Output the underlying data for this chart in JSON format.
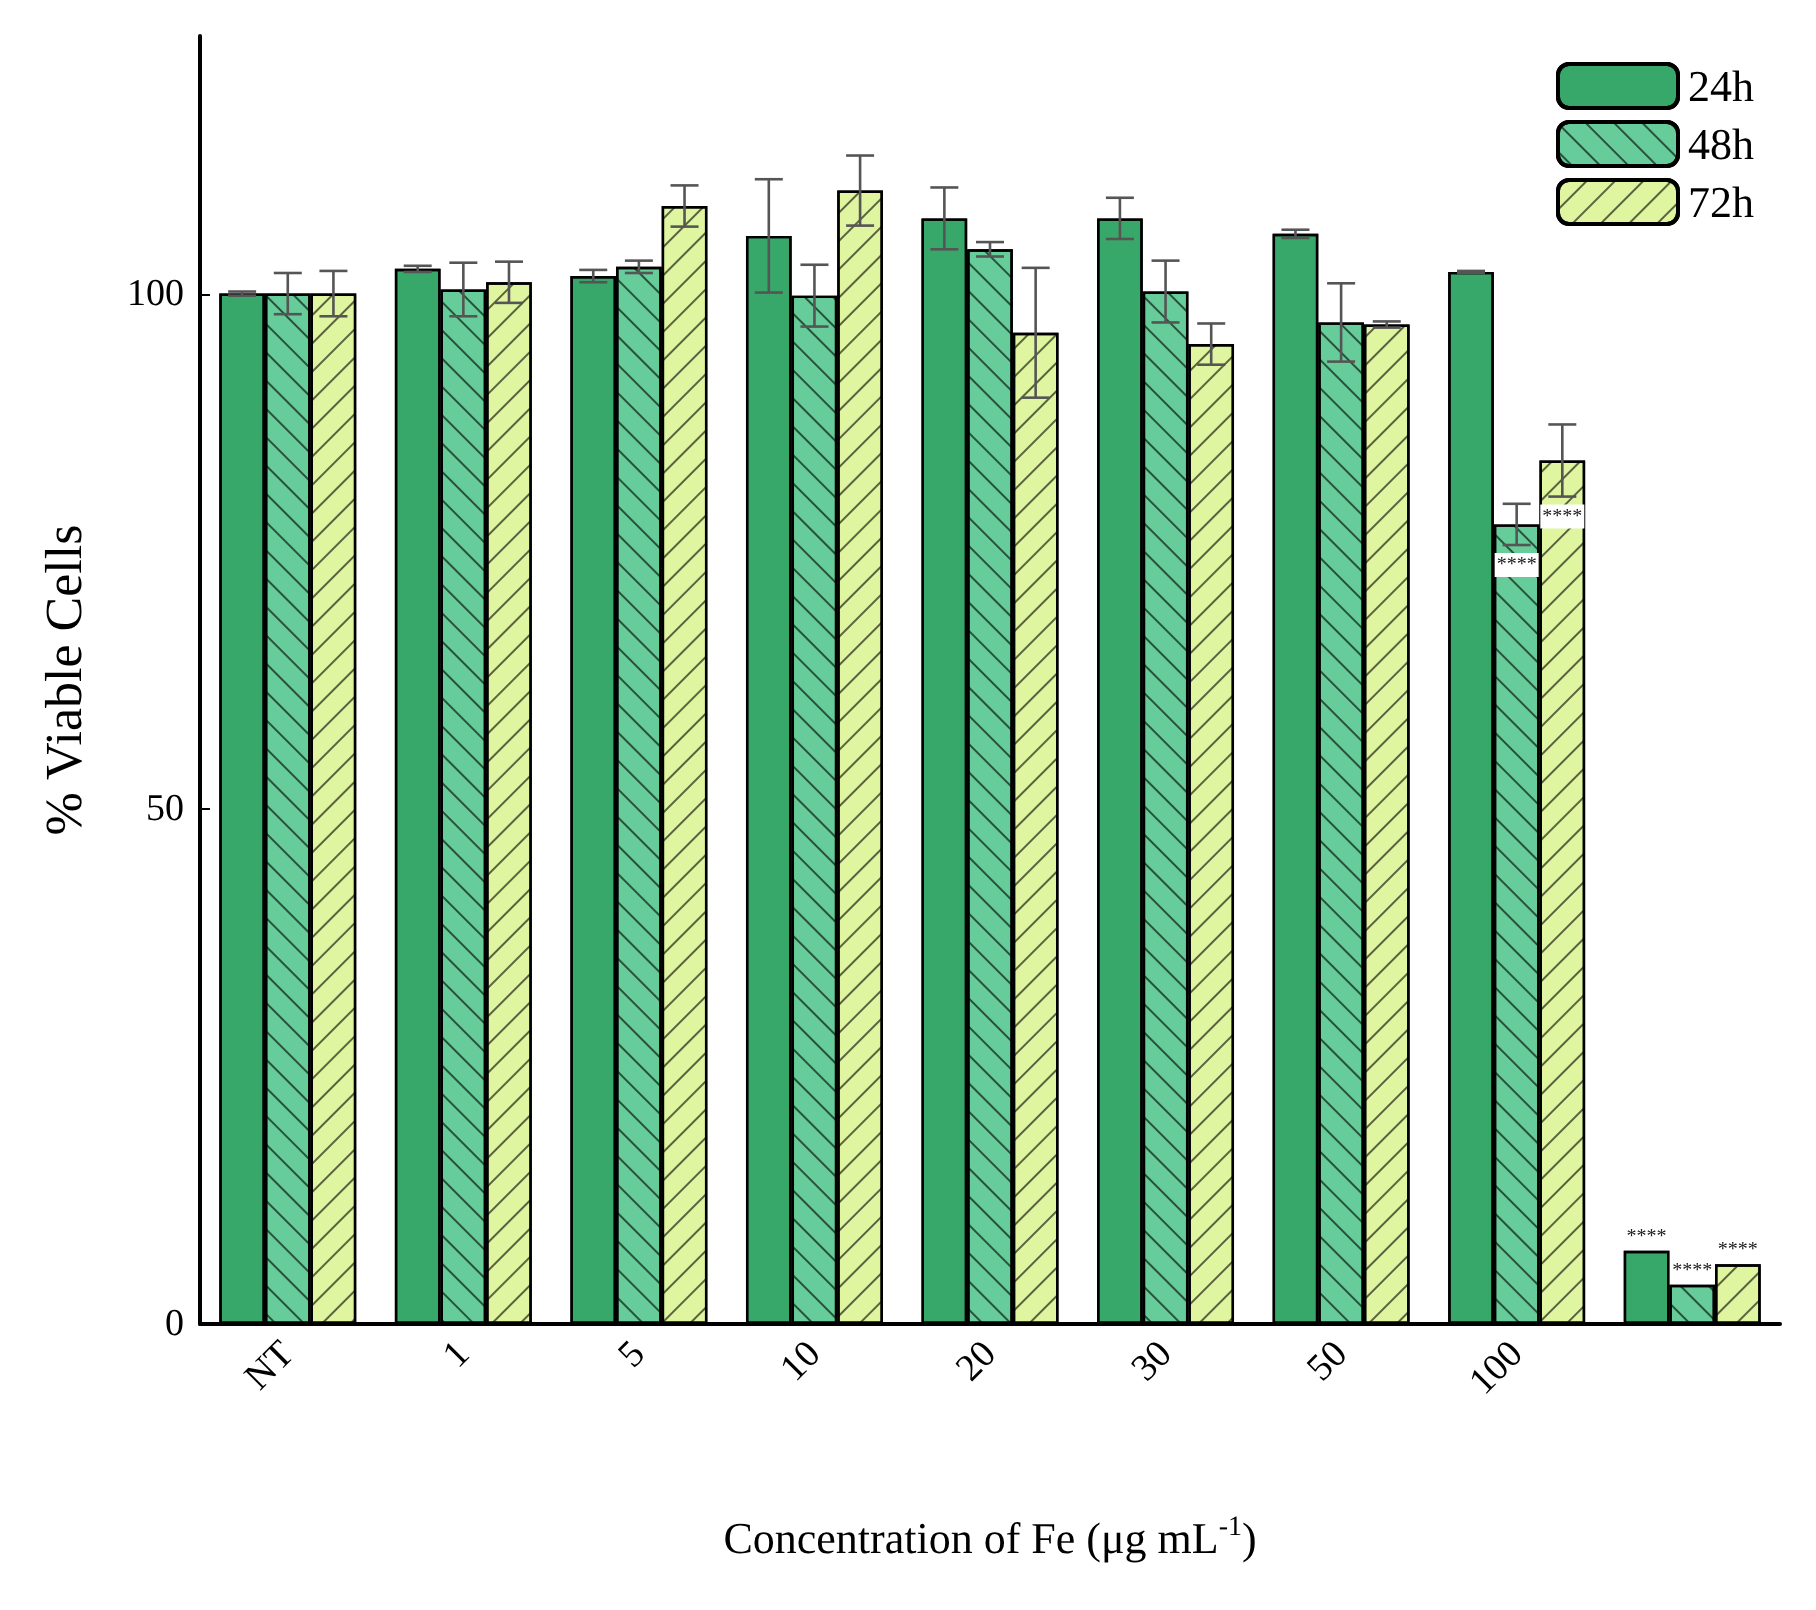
{
  "chart_data": {
    "type": "bar",
    "xlabel": "Concentration of Fe (μg mL$^{-1}$)",
    "ylabel": "% Viable Cells",
    "categories": [
      "NT",
      "1",
      "5",
      "10",
      "20",
      "30",
      "50",
      "100",
      null
    ],
    "series": [
      {
        "name": "24h",
        "color": "#38a86a",
        "values": [
          100,
          102.4,
          101.7,
          105.6,
          107.3,
          107.3,
          105.8,
          102.1,
          7.1
        ],
        "errors": [
          0.2,
          0.3,
          0.6,
          5.5,
          3,
          2,
          0.4,
          0.1,
          null
        ],
        "value_labels": [
          null,
          null,
          null,
          null,
          null,
          null,
          null,
          null,
          "****"
        ]
      },
      {
        "name": "48h",
        "color": "#66cc99",
        "values": [
          100,
          100.4,
          102.6,
          99.8,
          104.3,
          100.2,
          97.2,
          77.6,
          3.8
        ],
        "errors": [
          2,
          2.6,
          0.6,
          3,
          0.7,
          3,
          3.8,
          2,
          null
        ],
        "value_labels": [
          null,
          null,
          null,
          null,
          null,
          null,
          null,
          "****",
          "****"
        ]
      },
      {
        "name": "72h",
        "color": "#e0f5a0",
        "values": [
          100,
          101.1,
          108.5,
          110,
          96.2,
          95.1,
          97,
          83.8,
          5.8
        ],
        "errors": [
          2.2,
          2,
          2,
          3.4,
          6.3,
          2,
          0.3,
          3.5,
          null
        ],
        "value_labels": [
          null,
          null,
          null,
          null,
          null,
          null,
          null,
          "****",
          "****"
        ]
      }
    ],
    "ylim": [
      0,
      125
    ],
    "yticks": [
      0,
      50,
      100
    ],
    "grid": false,
    "legend": "top right"
  }
}
